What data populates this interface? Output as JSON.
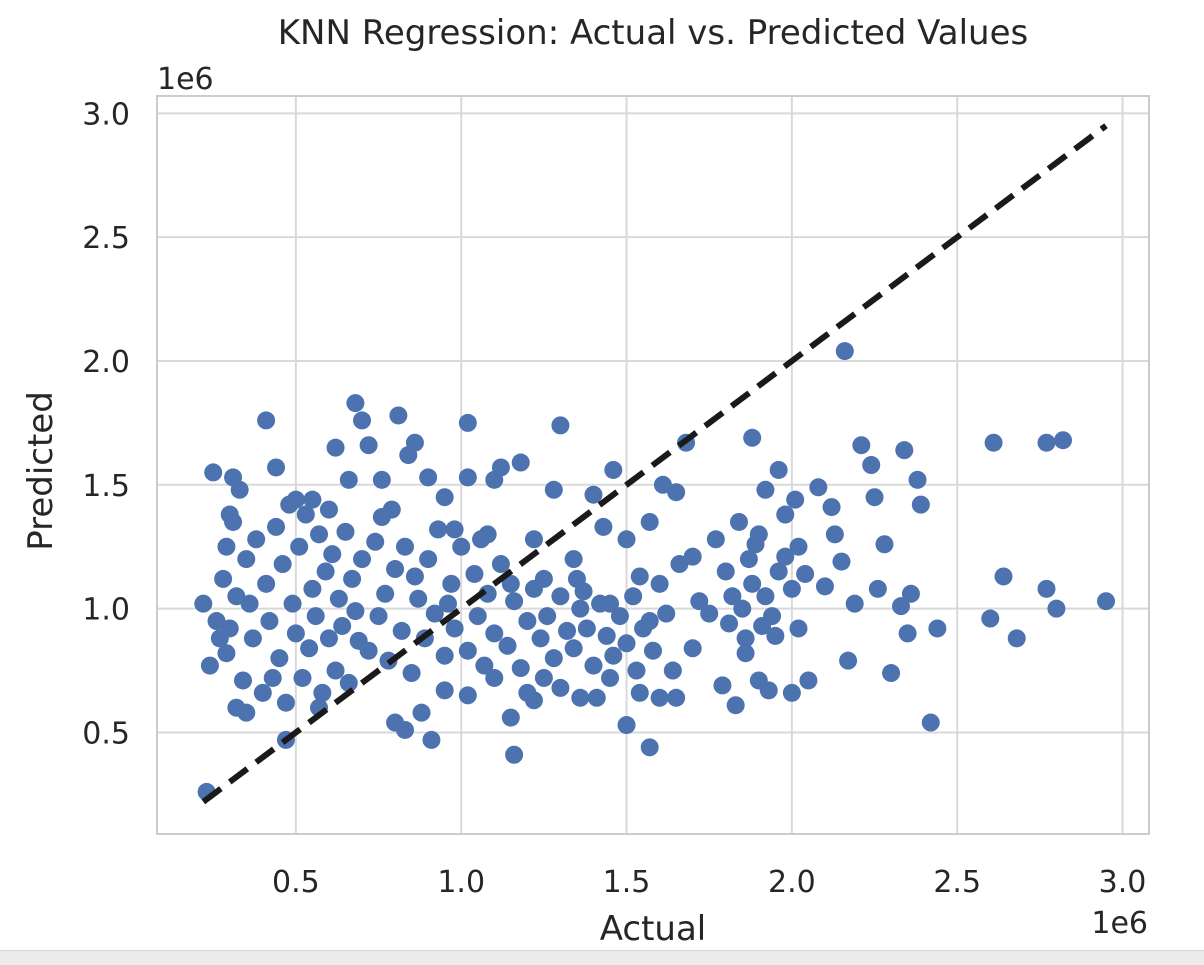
{
  "chart_data": {
    "type": "scatter",
    "title": "KNN Regression: Actual vs. Predicted Values",
    "xlabel": "Actual",
    "ylabel": "Predicted",
    "x_offset_label": "1e6",
    "y_offset_label": "1e6",
    "xlim": [
      0.08,
      3.08
    ],
    "ylim": [
      0.09,
      3.07
    ],
    "xticks": [
      {
        "value": 0.5,
        "label": "0.5"
      },
      {
        "value": 1.0,
        "label": "1.0"
      },
      {
        "value": 1.5,
        "label": "1.5"
      },
      {
        "value": 2.0,
        "label": "2.0"
      },
      {
        "value": 2.5,
        "label": "2.5"
      },
      {
        "value": 3.0,
        "label": "3.0"
      }
    ],
    "yticks": [
      {
        "value": 0.5,
        "label": "0.5"
      },
      {
        "value": 1.0,
        "label": "1.0"
      },
      {
        "value": 1.5,
        "label": "1.5"
      },
      {
        "value": 2.0,
        "label": "2.0"
      },
      {
        "value": 2.5,
        "label": "2.5"
      },
      {
        "value": 3.0,
        "label": "3.0"
      }
    ],
    "grid": true,
    "point_color": "#4c72b0",
    "reference_line": {
      "style": "dashed",
      "color": "#1a1a1a",
      "x": [
        0.22,
        2.95
      ],
      "y": [
        0.22,
        2.95
      ]
    },
    "series": [
      {
        "points": [
          [
            0.23,
            0.26
          ],
          [
            0.25,
            1.55
          ],
          [
            0.27,
            0.88
          ],
          [
            0.29,
            1.25
          ],
          [
            0.3,
            1.38
          ],
          [
            0.31,
            1.53
          ],
          [
            0.32,
            0.6
          ],
          [
            0.33,
            1.48
          ],
          [
            0.35,
            0.58
          ],
          [
            0.41,
            1.76
          ],
          [
            0.44,
            1.57
          ],
          [
            0.47,
            0.47
          ],
          [
            0.5,
            1.44
          ],
          [
            0.55,
            1.44
          ],
          [
            0.6,
            1.4
          ],
          [
            0.62,
            1.65
          ],
          [
            0.66,
            1.52
          ],
          [
            0.68,
            1.83
          ],
          [
            0.7,
            1.76
          ],
          [
            0.72,
            1.66
          ],
          [
            0.76,
            1.52
          ],
          [
            0.79,
            1.4
          ],
          [
            0.81,
            1.78
          ],
          [
            0.84,
            1.62
          ],
          [
            0.86,
            1.67
          ],
          [
            0.9,
            1.53
          ],
          [
            0.95,
            1.45
          ],
          [
            0.98,
            1.32
          ],
          [
            1.02,
            1.75
          ],
          [
            1.02,
            1.53
          ],
          [
            1.08,
            1.3
          ],
          [
            1.1,
            1.52
          ],
          [
            1.12,
            1.57
          ],
          [
            1.18,
            1.59
          ],
          [
            1.22,
            1.28
          ],
          [
            1.25,
            1.12
          ],
          [
            1.28,
            1.48
          ],
          [
            1.3,
            1.74
          ],
          [
            1.34,
            1.2
          ],
          [
            1.37,
            1.07
          ],
          [
            1.4,
            1.46
          ],
          [
            1.43,
            1.33
          ],
          [
            1.46,
            1.56
          ],
          [
            1.5,
            1.28
          ],
          [
            1.54,
            1.13
          ],
          [
            1.57,
            1.35
          ],
          [
            1.61,
            1.5
          ],
          [
            1.65,
            1.47
          ],
          [
            1.68,
            1.67
          ],
          [
            1.7,
            1.21
          ],
          [
            0.8,
            0.54
          ],
          [
            0.83,
            0.51
          ],
          [
            0.88,
            0.58
          ],
          [
            0.91,
            0.47
          ],
          [
            0.95,
            0.67
          ],
          [
            1.02,
            0.65
          ],
          [
            1.1,
            0.72
          ],
          [
            1.15,
            0.56
          ],
          [
            1.16,
            0.41
          ],
          [
            1.2,
            0.66
          ],
          [
            1.22,
            0.63
          ],
          [
            1.3,
            0.68
          ],
          [
            1.36,
            0.64
          ],
          [
            1.41,
            0.64
          ],
          [
            1.45,
            0.72
          ],
          [
            1.5,
            0.53
          ],
          [
            1.54,
            0.66
          ],
          [
            1.57,
            0.44
          ],
          [
            1.6,
            0.64
          ],
          [
            1.65,
            0.64
          ],
          [
            1.7,
            0.84
          ],
          [
            1.72,
            1.03
          ],
          [
            1.75,
            0.98
          ],
          [
            1.77,
            1.28
          ],
          [
            1.79,
            0.69
          ],
          [
            1.81,
            0.94
          ],
          [
            1.83,
            0.61
          ],
          [
            1.85,
            1.0
          ],
          [
            1.86,
            0.82
          ],
          [
            1.88,
            1.69
          ],
          [
            1.89,
            1.26
          ],
          [
            1.9,
            0.71
          ],
          [
            1.91,
            0.93
          ],
          [
            1.92,
            1.48
          ],
          [
            1.93,
            0.67
          ],
          [
            1.95,
            0.89
          ],
          [
            1.96,
            1.56
          ],
          [
            1.98,
            1.21
          ],
          [
            2.0,
            0.66
          ],
          [
            2.01,
            1.44
          ],
          [
            2.02,
            0.92
          ],
          [
            2.04,
            1.14
          ],
          [
            2.05,
            0.71
          ],
          [
            2.08,
            1.49
          ],
          [
            2.1,
            1.09
          ],
          [
            2.12,
            1.41
          ],
          [
            2.13,
            1.3
          ],
          [
            2.15,
            1.19
          ],
          [
            2.16,
            2.04
          ],
          [
            2.17,
            0.79
          ],
          [
            2.19,
            1.02
          ],
          [
            2.21,
            1.66
          ],
          [
            2.24,
            1.58
          ],
          [
            2.25,
            1.45
          ],
          [
            2.26,
            1.08
          ],
          [
            2.28,
            1.26
          ],
          [
            2.3,
            0.74
          ],
          [
            2.33,
            1.01
          ],
          [
            2.34,
            1.64
          ],
          [
            2.35,
            0.9
          ],
          [
            2.36,
            1.06
          ],
          [
            2.38,
            1.52
          ],
          [
            2.39,
            1.42
          ],
          [
            2.42,
            0.54
          ],
          [
            2.44,
            0.92
          ],
          [
            2.6,
            0.96
          ],
          [
            2.61,
            1.67
          ],
          [
            2.64,
            1.13
          ],
          [
            2.68,
            0.88
          ],
          [
            2.77,
            1.08
          ],
          [
            2.77,
            1.67
          ],
          [
            2.8,
            1.0
          ],
          [
            2.82,
            1.68
          ],
          [
            2.95,
            1.03
          ],
          [
            0.22,
            1.02
          ],
          [
            0.24,
            0.77
          ],
          [
            0.26,
            0.95
          ],
          [
            0.28,
            1.12
          ],
          [
            0.29,
            0.82
          ],
          [
            0.31,
            1.35
          ],
          [
            0.32,
            1.05
          ],
          [
            0.34,
            0.71
          ],
          [
            0.35,
            1.2
          ],
          [
            0.37,
            0.88
          ],
          [
            0.38,
            1.28
          ],
          [
            0.4,
            0.66
          ],
          [
            0.41,
            1.1
          ],
          [
            0.42,
            0.95
          ],
          [
            0.44,
            1.33
          ],
          [
            0.45,
            0.8
          ],
          [
            0.46,
            1.18
          ],
          [
            0.47,
            0.62
          ],
          [
            0.49,
            1.02
          ],
          [
            0.5,
            0.9
          ],
          [
            0.51,
            1.25
          ],
          [
            0.52,
            0.72
          ],
          [
            0.53,
            1.38
          ],
          [
            0.54,
            0.84
          ],
          [
            0.55,
            1.08
          ],
          [
            0.56,
            0.97
          ],
          [
            0.57,
            1.3
          ],
          [
            0.58,
            0.66
          ],
          [
            0.59,
            1.15
          ],
          [
            0.6,
            0.88
          ],
          [
            0.61,
            1.22
          ],
          [
            0.62,
            0.75
          ],
          [
            0.63,
            1.04
          ],
          [
            0.64,
            0.93
          ],
          [
            0.65,
            1.31
          ],
          [
            0.66,
            0.7
          ],
          [
            0.67,
            1.12
          ],
          [
            0.68,
            0.99
          ],
          [
            0.7,
            1.2
          ],
          [
            0.72,
            0.83
          ],
          [
            0.74,
            1.27
          ],
          [
            0.75,
            0.97
          ],
          [
            0.77,
            1.06
          ],
          [
            0.78,
            0.79
          ],
          [
            0.8,
            1.16
          ],
          [
            0.82,
            0.91
          ],
          [
            0.83,
            1.25
          ],
          [
            0.85,
            0.74
          ],
          [
            0.87,
            1.04
          ],
          [
            0.89,
            0.88
          ],
          [
            0.9,
            1.2
          ],
          [
            0.92,
            0.98
          ],
          [
            0.93,
            1.32
          ],
          [
            0.95,
            0.81
          ],
          [
            0.97,
            1.1
          ],
          [
            0.98,
            0.92
          ],
          [
            1.0,
            1.25
          ],
          [
            1.02,
            0.83
          ],
          [
            1.04,
            1.14
          ],
          [
            1.05,
            0.97
          ],
          [
            1.07,
            0.77
          ],
          [
            1.08,
            1.06
          ],
          [
            1.1,
            0.9
          ],
          [
            1.12,
            1.18
          ],
          [
            1.14,
            0.85
          ],
          [
            1.16,
            1.03
          ],
          [
            1.18,
            0.76
          ],
          [
            1.2,
            0.95
          ],
          [
            1.22,
            1.08
          ],
          [
            1.24,
            0.88
          ],
          [
            1.26,
            0.97
          ],
          [
            1.28,
            0.8
          ],
          [
            1.3,
            1.05
          ],
          [
            1.32,
            0.91
          ],
          [
            1.34,
            0.84
          ],
          [
            1.36,
            1.0
          ],
          [
            1.38,
            0.92
          ],
          [
            1.4,
            0.77
          ],
          [
            1.42,
            1.02
          ],
          [
            1.44,
            0.89
          ],
          [
            1.46,
            0.81
          ],
          [
            1.48,
            0.97
          ],
          [
            1.5,
            0.86
          ],
          [
            1.52,
            1.05
          ],
          [
            1.55,
            0.92
          ],
          [
            1.58,
            0.83
          ],
          [
            1.6,
            1.1
          ],
          [
            1.62,
            0.98
          ],
          [
            1.64,
            0.75
          ],
          [
            1.66,
            1.18
          ],
          [
            1.8,
            1.15
          ],
          [
            1.82,
            1.05
          ],
          [
            1.84,
            1.35
          ],
          [
            1.86,
            0.88
          ],
          [
            1.87,
            1.2
          ],
          [
            1.88,
            1.1
          ],
          [
            1.9,
            1.3
          ],
          [
            1.92,
            1.05
          ],
          [
            1.94,
            0.97
          ],
          [
            1.96,
            1.15
          ],
          [
            1.98,
            1.38
          ],
          [
            2.0,
            1.08
          ],
          [
            2.02,
            1.25
          ],
          [
            0.3,
            0.92
          ],
          [
            0.36,
            1.02
          ],
          [
            0.43,
            0.72
          ],
          [
            0.48,
            1.42
          ],
          [
            0.57,
            0.6
          ],
          [
            0.69,
            0.87
          ],
          [
            0.76,
            1.37
          ],
          [
            0.86,
            1.13
          ],
          [
            0.96,
            1.02
          ],
          [
            1.06,
            1.28
          ],
          [
            1.15,
            1.1
          ],
          [
            1.25,
            0.72
          ],
          [
            1.35,
            1.12
          ],
          [
            1.45,
            1.02
          ],
          [
            1.53,
            0.75
          ],
          [
            1.57,
            0.95
          ]
        ]
      }
    ]
  }
}
